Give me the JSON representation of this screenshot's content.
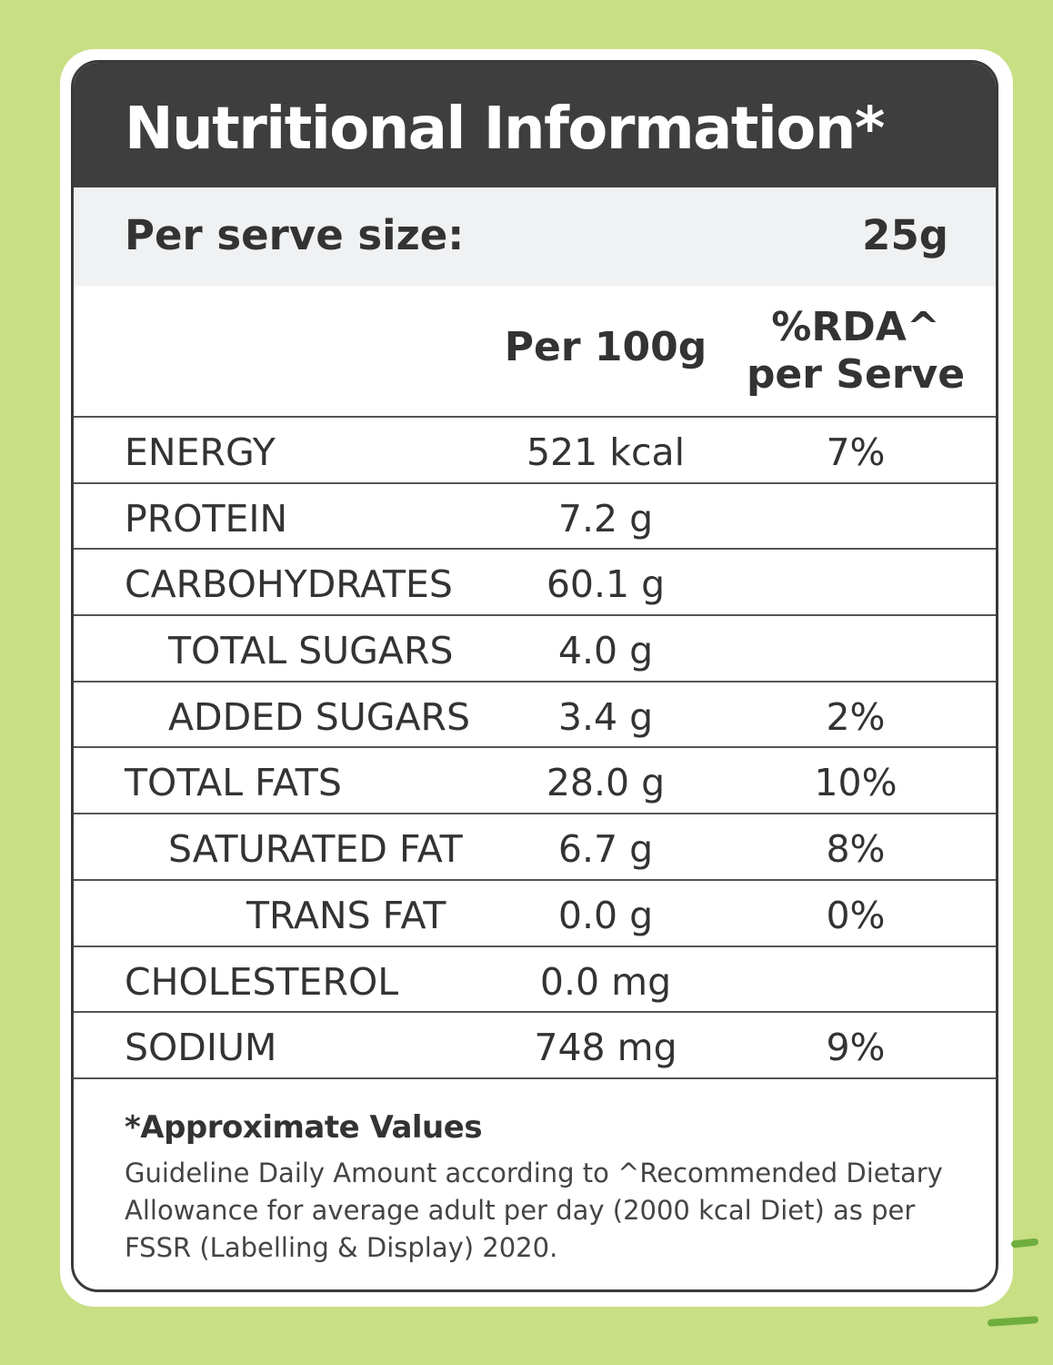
{
  "label": {
    "title": "Nutritional Information*",
    "serve_size_label": "Per serve size:",
    "serve_size_value": "25g",
    "columns": {
      "per100": "Per 100g",
      "rda_line1": "%RDA^",
      "rda_line2": "per Serve"
    },
    "rows": [
      {
        "name": "ENERGY",
        "per100": "521 kcal",
        "rda": "7%"
      },
      {
        "name": "PROTEIN",
        "per100": "7.2 g",
        "rda": ""
      },
      {
        "name": "CARBOHYDRATES",
        "per100": "60.1 g",
        "rda": ""
      },
      {
        "name": "TOTAL SUGARS",
        "per100": "4.0 g",
        "rda": ""
      },
      {
        "name": "ADDED SUGARS",
        "per100": "3.4 g",
        "rda": "2%"
      },
      {
        "name": "TOTAL FATS",
        "per100": "28.0 g",
        "rda": "10%"
      },
      {
        "name": "SATURATED FAT",
        "per100": "6.7 g",
        "rda": "8%"
      },
      {
        "name": "TRANS FAT",
        "per100": "0.0 g",
        "rda": "0%"
      },
      {
        "name": "CHOLESTEROL",
        "per100": "0.0 mg",
        "rda": ""
      },
      {
        "name": "SODIUM",
        "per100": "748 mg",
        "rda": "9%"
      }
    ],
    "footnote_title": "*Approximate Values",
    "footnote_body": "Guideline Daily Amount according to ^Recommended Dietary Allowance for average adult per day (2000 kcal Diet) as per FSSR (Labelling & Display) 2020."
  },
  "colors": {
    "background": "#c8df84",
    "title_bar": "#3e3e3e",
    "serve_bar": "#f0f1f3",
    "text": "#333333"
  }
}
